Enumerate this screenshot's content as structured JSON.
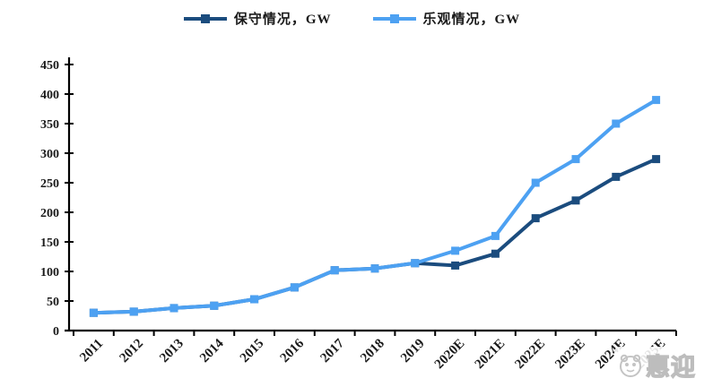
{
  "legend": {
    "items": [
      {
        "label": "保守情况，GW",
        "color": "#1B4C7E"
      },
      {
        "label": "乐观情况，GW",
        "color": "#4DA1F2"
      }
    ]
  },
  "watermark": {
    "text": "惠迎"
  },
  "chart_data": {
    "type": "line",
    "categories": [
      "2011",
      "2012",
      "2013",
      "2014",
      "2015",
      "2016",
      "2017",
      "2018",
      "2019",
      "2020E",
      "2021E",
      "2022E",
      "2023E",
      "2024E",
      "2025E"
    ],
    "series": [
      {
        "name": "保守情况，GW",
        "color": "#1B4C7E",
        "values": [
          30,
          32,
          38,
          42,
          53,
          73,
          102,
          105,
          114,
          110,
          130,
          190,
          220,
          260,
          290
        ]
      },
      {
        "name": "乐观情况，GW",
        "color": "#4DA1F2",
        "values": [
          30,
          32,
          38,
          42,
          53,
          73,
          102,
          105,
          114,
          135,
          160,
          250,
          290,
          350,
          390
        ]
      }
    ],
    "title": "",
    "xlabel": "",
    "ylabel": "",
    "ylim": [
      0,
      450
    ],
    "ytick_step": 50,
    "yticks": [
      0,
      50,
      100,
      150,
      200,
      250,
      300,
      350,
      400,
      450
    ],
    "grid": false,
    "legend_position": "top",
    "marker": "square",
    "axis_color": "#000000",
    "label_color": "#1a1a1a"
  }
}
